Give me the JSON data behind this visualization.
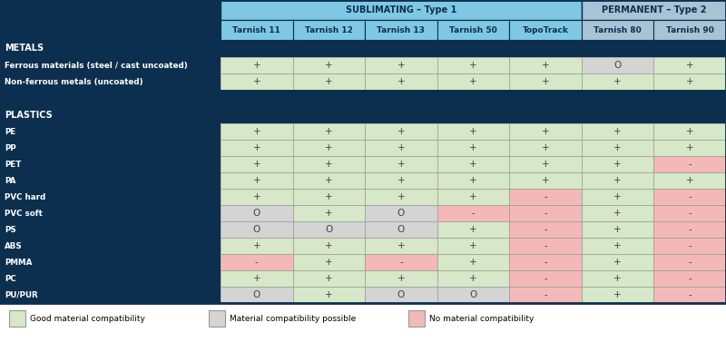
{
  "title_sublimating": "SUBLIMATING – Type 1",
  "title_permanent": "PERMANENT – Type 2",
  "col_headers": [
    "Tarnish 11",
    "Tarnish 12",
    "Tarnish 13",
    "Tarnish 50",
    "TopoTrack",
    "Tarnish 80",
    "Tarnish 90"
  ],
  "section_labels": [
    "METALS",
    "PLASTICS"
  ],
  "row_labels": [
    "Ferrous materials (steel / cast uncoated)",
    "Non-ferrous metals (uncoated)",
    "PE",
    "PP",
    "PET",
    "PA",
    "PVC hard",
    "PVC soft",
    "PS",
    "ABS",
    "PMMA",
    "PC",
    "PU/PUR"
  ],
  "data": [
    [
      "+",
      "+",
      "+",
      "+",
      "+",
      "O",
      "+"
    ],
    [
      "+",
      "+",
      "+",
      "+",
      "+",
      "+",
      "+"
    ],
    [
      "+",
      "+",
      "+",
      "+",
      "+",
      "+",
      "+"
    ],
    [
      "+",
      "+",
      "+",
      "+",
      "+",
      "+",
      "+"
    ],
    [
      "+",
      "+",
      "+",
      "+",
      "+",
      "+",
      "-"
    ],
    [
      "+",
      "+",
      "+",
      "+",
      "+",
      "+",
      "+"
    ],
    [
      "+",
      "+",
      "+",
      "+",
      "-",
      "+",
      "-"
    ],
    [
      "O",
      "+",
      "O",
      "-",
      "-",
      "+",
      "-"
    ],
    [
      "O",
      "O",
      "O",
      "+",
      "-",
      "+",
      "-"
    ],
    [
      "+",
      "+",
      "+",
      "+",
      "-",
      "+",
      "-"
    ],
    [
      "-",
      "+",
      "-",
      "+",
      "-",
      "+",
      "-"
    ],
    [
      "+",
      "+",
      "+",
      "+",
      "-",
      "+",
      "-"
    ],
    [
      "O",
      "+",
      "O",
      "O",
      "-",
      "+",
      "-"
    ]
  ],
  "cell_colors": [
    [
      "green",
      "green",
      "green",
      "green",
      "green",
      "gray",
      "green"
    ],
    [
      "green",
      "green",
      "green",
      "green",
      "green",
      "green",
      "green"
    ],
    [
      "green",
      "green",
      "green",
      "green",
      "green",
      "green",
      "green"
    ],
    [
      "green",
      "green",
      "green",
      "green",
      "green",
      "green",
      "green"
    ],
    [
      "green",
      "green",
      "green",
      "green",
      "green",
      "green",
      "red"
    ],
    [
      "green",
      "green",
      "green",
      "green",
      "green",
      "green",
      "green"
    ],
    [
      "green",
      "green",
      "green",
      "green",
      "red",
      "green",
      "red"
    ],
    [
      "gray",
      "green",
      "gray",
      "red",
      "red",
      "green",
      "red"
    ],
    [
      "gray",
      "gray",
      "gray",
      "green",
      "red",
      "green",
      "red"
    ],
    [
      "green",
      "green",
      "green",
      "green",
      "red",
      "green",
      "red"
    ],
    [
      "red",
      "green",
      "red",
      "green",
      "red",
      "green",
      "red"
    ],
    [
      "green",
      "green",
      "green",
      "green",
      "red",
      "green",
      "red"
    ],
    [
      "gray",
      "green",
      "gray",
      "gray",
      "red",
      "green",
      "red"
    ]
  ],
  "color_green": "#d6e8c8",
  "color_gray": "#d4d4d4",
  "color_red": "#f4b8b8",
  "color_dark": "#0d2f4f",
  "color_sublimating": "#7ec8e3",
  "color_permanent": "#a8c4d4",
  "color_white": "#ffffff",
  "legend_items": [
    {
      "label": "Good material compatibility",
      "color": "#d6e8c8"
    },
    {
      "label": "Material compatibility possible",
      "color": "#d4d4d4"
    },
    {
      "label": "No material compatibility",
      "color": "#f4b8b8"
    }
  ]
}
